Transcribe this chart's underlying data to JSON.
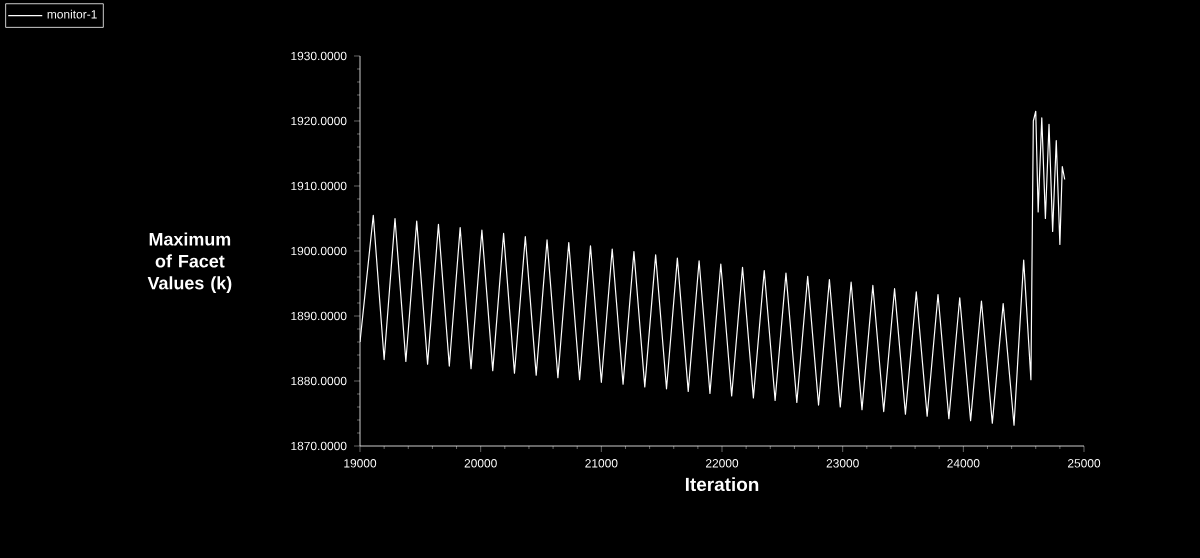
{
  "chart_data": {
    "type": "line",
    "xlabel": "Iteration",
    "ylabel": "Maximum of Facet Values (k)",
    "xlim": [
      19000,
      25000
    ],
    "xticks": [
      19000,
      20000,
      21000,
      22000,
      23000,
      24000,
      25000
    ],
    "ylim": [
      1870,
      1930
    ],
    "yticks": [
      {
        "value": 1870,
        "label": "1870.0000"
      },
      {
        "value": 1880,
        "label": "1880.0000"
      },
      {
        "value": 1890,
        "label": "1890.0000"
      },
      {
        "value": 1900,
        "label": "1900.0000"
      },
      {
        "value": 1910,
        "label": "1910.0000"
      },
      {
        "value": 1920,
        "label": "1920.0000"
      },
      {
        "value": 1930,
        "label": "1930.0000"
      }
    ],
    "legend": "top left",
    "series": [
      {
        "name": "monitor-1",
        "color": "#ffffff",
        "x": [
          19000,
          19110,
          19200,
          19290,
          19380,
          19470,
          19560,
          19650,
          19740,
          19830,
          19920,
          20010,
          20100,
          20190,
          20280,
          20370,
          20460,
          20550,
          20640,
          20730,
          20820,
          20910,
          21000,
          21090,
          21180,
          21270,
          21360,
          21450,
          21540,
          21630,
          21720,
          21810,
          21900,
          21990,
          22080,
          22170,
          22260,
          22350,
          22440,
          22530,
          22620,
          22710,
          22800,
          22890,
          22980,
          23070,
          23160,
          23250,
          23340,
          23430,
          23520,
          23610,
          23700,
          23790,
          23880,
          23970,
          24060,
          24150,
          24240,
          24330,
          24420,
          24500,
          24560,
          24580,
          24600,
          24620,
          24650,
          24680,
          24710,
          24740,
          24770,
          24800,
          24820,
          24840
        ],
        "values": [
          1886,
          1905.5,
          1883.3,
          1905.0,
          1883.0,
          1904.6,
          1882.6,
          1904.1,
          1882.3,
          1903.6,
          1881.9,
          1903.2,
          1881.6,
          1902.7,
          1881.2,
          1902.2,
          1880.9,
          1901.7,
          1880.5,
          1901.3,
          1880.2,
          1900.8,
          1879.8,
          1900.3,
          1879.5,
          1899.9,
          1879.1,
          1899.4,
          1878.8,
          1898.9,
          1878.4,
          1898.5,
          1878.1,
          1898.0,
          1877.7,
          1897.5,
          1877.4,
          1897.0,
          1877.0,
          1896.6,
          1876.7,
          1896.1,
          1876.3,
          1895.6,
          1876.0,
          1895.2,
          1875.6,
          1894.7,
          1875.3,
          1894.2,
          1874.9,
          1893.7,
          1874.6,
          1893.3,
          1874.2,
          1892.8,
          1873.9,
          1892.3,
          1873.5,
          1891.9,
          1873.2,
          1898.6,
          1880.2,
          1920,
          1921.5,
          1906,
          1920.5,
          1905,
          1919.5,
          1903,
          1917,
          1901,
          1913,
          1911
        ]
      }
    ]
  }
}
